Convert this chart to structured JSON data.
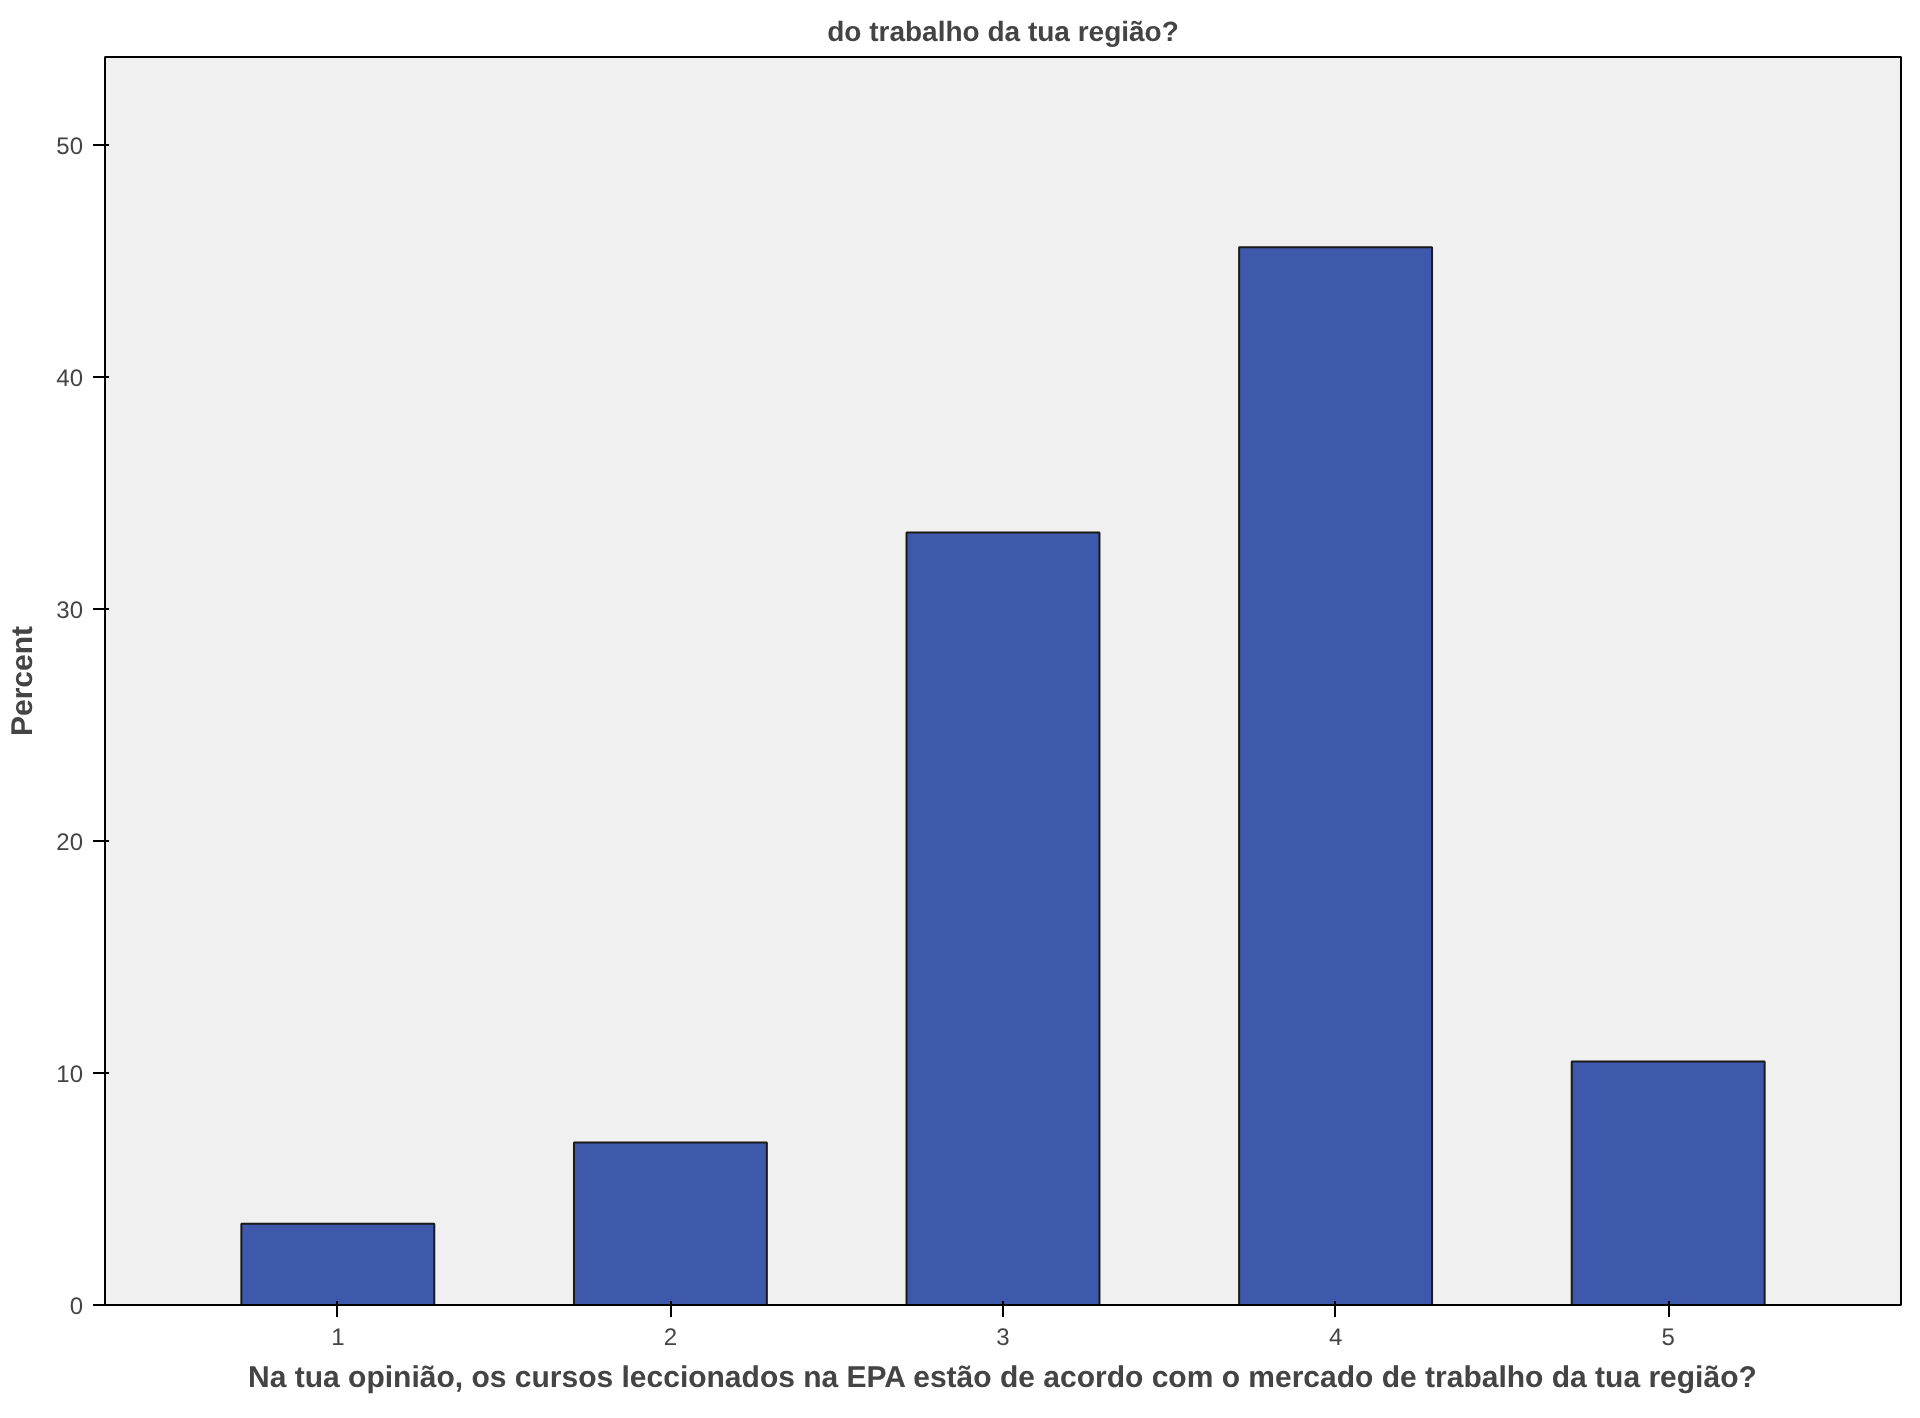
{
  "chart_data": {
    "type": "bar",
    "title": "do trabalho da tua região?",
    "xlabel": "Na tua opinião, os cursos leccionados na EPA estão de acordo com o mercado de trabalho da tua região?",
    "ylabel": "Percent",
    "categories": [
      "1",
      "2",
      "3",
      "4",
      "5"
    ],
    "values": [
      3.5,
      7.0,
      33.3,
      45.6,
      10.5
    ],
    "color": "#3e58ac",
    "ylim": [
      0,
      53.8
    ],
    "yticks": [
      0,
      10,
      20,
      30,
      40,
      50
    ],
    "grid": false
  }
}
